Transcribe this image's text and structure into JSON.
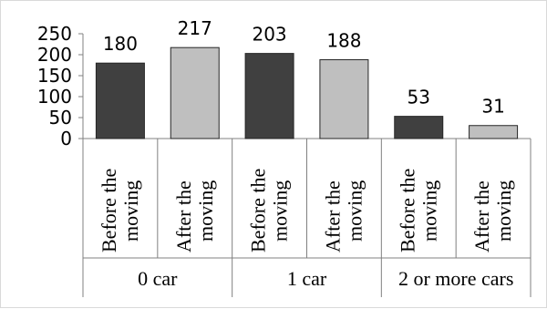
{
  "chart_data": {
    "type": "bar",
    "title": "",
    "xlabel": "",
    "ylabel": "",
    "ylim": [
      0,
      250
    ],
    "yticks": [
      "0",
      "50",
      "100",
      "150",
      "200",
      "250"
    ],
    "grid": false,
    "legend": "none",
    "groups": [
      {
        "label": "0 car",
        "bars": [
          {
            "category": "Before the moving",
            "line1": "Before the",
            "line2": "moving",
            "value": 180,
            "label": "180",
            "color": "#404040"
          },
          {
            "category": "After the moving",
            "line1": "After the",
            "line2": "moving",
            "value": 217,
            "label": "217",
            "color": "#bfbfbf"
          }
        ]
      },
      {
        "label": "1 car",
        "bars": [
          {
            "category": "Before the moving",
            "line1": "Before the",
            "line2": "moving",
            "value": 203,
            "label": "203",
            "color": "#404040"
          },
          {
            "category": "After the moving",
            "line1": "After the",
            "line2": "moving",
            "value": 188,
            "label": "188",
            "color": "#bfbfbf"
          }
        ]
      },
      {
        "label": "2 or more cars",
        "bars": [
          {
            "category": "Before the moving",
            "line1": "Before the",
            "line2": "moving",
            "value": 53,
            "label": "53",
            "color": "#404040"
          },
          {
            "category": "After the moving",
            "line1": "After the",
            "line2": "moving",
            "value": 31,
            "label": "31",
            "color": "#bfbfbf"
          }
        ]
      }
    ]
  }
}
